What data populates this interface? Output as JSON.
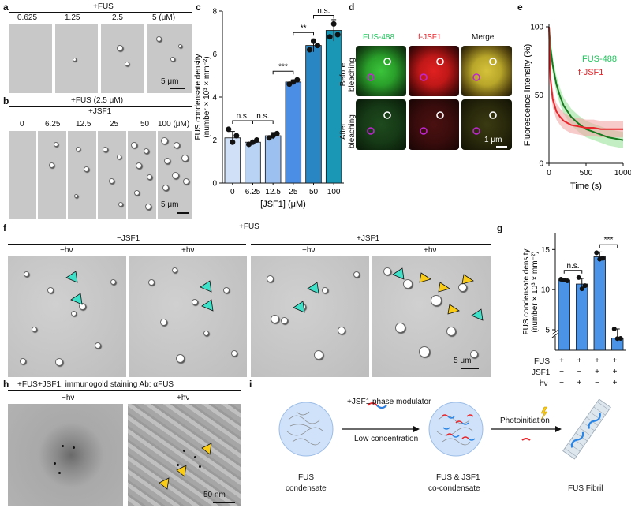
{
  "panels": {
    "a": {
      "label": "a",
      "header": "+FUS",
      "concs": [
        "0.625",
        "1.25",
        "2.5",
        "5 (μM)"
      ],
      "scale": "5 μm"
    },
    "b": {
      "label": "b",
      "header1": "+FUS (2.5 μM)",
      "header2": "+JSF1",
      "concs": [
        "0",
        "6.25",
        "12.5",
        "25",
        "50",
        "100 (μM)"
      ],
      "scale": "5 μm"
    },
    "c": {
      "label": "c"
    },
    "d": {
      "label": "d",
      "channels": [
        "FUS-488",
        "f-JSF1",
        "Merge"
      ],
      "rows": [
        "Before bleaching",
        "After bleaching"
      ],
      "row1a": "Before",
      "row1b": "bleaching",
      "row2a": "After",
      "row2b": "bleaching",
      "scale": "1 μm"
    },
    "e": {
      "label": "e"
    },
    "f": {
      "label": "f",
      "header": "+FUS",
      "group1": "−JSF1",
      "group2": "+JSF1",
      "conds": [
        "−hν",
        "+hν",
        "−hν",
        "+hν"
      ],
      "scale": "5 μm"
    },
    "g": {
      "label": "g",
      "rows": [
        "FUS",
        "JSF1",
        "hν"
      ],
      "signs": [
        [
          "+",
          "+",
          "+",
          "+"
        ],
        [
          "−",
          "−",
          "+",
          "+"
        ],
        [
          "−",
          "+",
          "−",
          "+"
        ]
      ],
      "sig": [
        "n.s.",
        "***"
      ]
    },
    "h": {
      "label": "h",
      "header": "+FUS+JSF1, immunogold staining Ab: αFUS",
      "conds": [
        "−hν",
        "+hν"
      ],
      "scale": "50 nm"
    },
    "i": {
      "label": "i",
      "step1a": "+JSF1 phase modulator",
      "step1b": "Low concentration",
      "step2": "Photoinitiation",
      "cap1a": "FUS",
      "cap1b": "condensate",
      "cap2a": "FUS & JSF1",
      "cap2b": "co-condensate",
      "cap3": "FUS Fibril"
    }
  },
  "chart_data": [
    {
      "id": "c",
      "type": "bar",
      "categories": [
        "0",
        "6.25",
        "12.5",
        "25",
        "50",
        "100"
      ],
      "values": [
        2.1,
        1.9,
        2.2,
        4.7,
        6.4,
        7.1
      ],
      "points": [
        [
          2.5,
          1.9,
          2.2
        ],
        [
          1.8,
          1.9,
          2.0
        ],
        [
          2.1,
          2.2,
          2.3
        ],
        [
          4.6,
          4.7,
          4.8
        ],
        [
          6.2,
          6.6,
          6.4
        ],
        [
          6.8,
          7.4,
          6.9
        ]
      ],
      "errors": [
        0.3,
        0.1,
        0.15,
        0.1,
        0.3,
        0.5
      ],
      "xlabel": "[JSF1] (μM)",
      "ylabel1": "FUS condensate density",
      "ylabel2": "(number × 10³ × mm⁻²)",
      "ylim": [
        0,
        8
      ],
      "yticks": [
        "0",
        "2",
        "4",
        "6",
        "8"
      ],
      "sig": [
        "n.s.",
        "n.s.",
        "***",
        "**",
        "n.s."
      ],
      "colors": [
        "#cfe0f7",
        "#b9d3f5",
        "#9cc1f0",
        "#4a8ee6",
        "#2a86c2",
        "#1a97b5"
      ]
    },
    {
      "id": "e",
      "type": "line",
      "xlabel": "Time (s)",
      "ylabel": "Fluorescence intensity (%)",
      "xlim": [
        0,
        1000
      ],
      "ylim": [
        0,
        100
      ],
      "xticks": [
        "0",
        "500",
        "1000"
      ],
      "yticks": [
        "0",
        "50",
        "100"
      ],
      "series": [
        {
          "name": "FUS-488",
          "color": "#157a1e",
          "band": "#9be39b",
          "x": [
            0,
            20,
            50,
            100,
            150,
            200,
            300,
            400,
            500,
            600,
            700,
            800,
            900,
            1000
          ],
          "y": [
            100,
            85,
            72,
            58,
            49,
            42,
            34,
            29,
            25,
            23,
            21,
            19,
            18,
            17
          ]
        },
        {
          "name": "f-JSF1",
          "color": "#e8262b",
          "band": "#f3a9a9",
          "x": [
            0,
            20,
            50,
            100,
            150,
            200,
            300,
            400,
            500,
            600,
            700,
            800,
            900,
            1000
          ],
          "y": [
            100,
            62,
            47,
            38,
            34,
            31,
            28,
            27,
            26,
            26,
            25,
            25,
            25,
            25
          ]
        }
      ]
    },
    {
      "id": "g",
      "type": "bar",
      "categories": [
        "1",
        "2",
        "3",
        "4"
      ],
      "values": [
        11.2,
        10.7,
        14.1,
        4.8
      ],
      "points": [
        [
          11.3,
          11.2,
          11.1
        ],
        [
          11.5,
          10.1,
          10.5
        ],
        [
          14.6,
          13.8,
          13.9
        ],
        [
          5.1,
          4.6,
          4.7
        ]
      ],
      "errors": [
        0.2,
        0.7,
        0.6,
        0.3
      ],
      "ylabel1": "FUS condensate density",
      "ylabel2": "(number × 10³ × mm⁻²)",
      "yticks": [
        "5",
        "10",
        "15"
      ],
      "color": "#4a93e6"
    }
  ]
}
